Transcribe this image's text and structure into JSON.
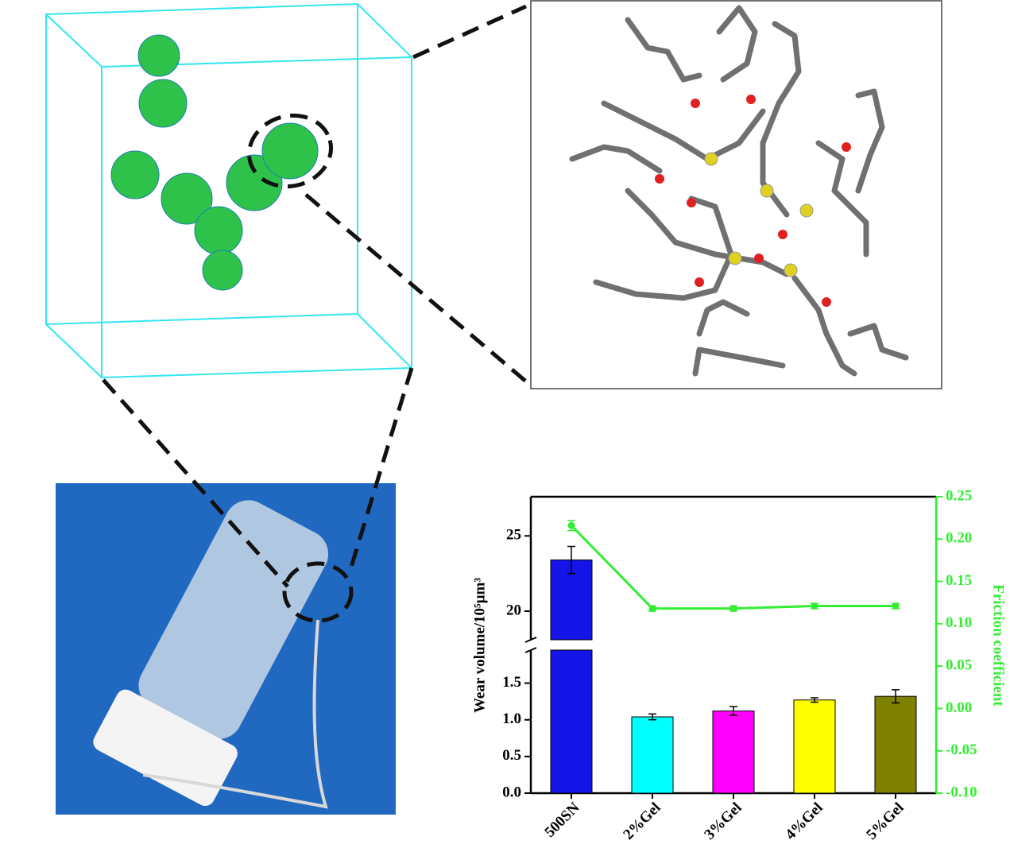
{
  "chart_data": {
    "type": "bar",
    "categories": [
      "500SN",
      "2%Gel",
      "3%Gel",
      "4%Gel",
      "5%Gel"
    ],
    "values": [
      23.4,
      1.04,
      1.12,
      1.27,
      1.32
    ],
    "errors": [
      0.9,
      0.04,
      0.06,
      0.03,
      0.09
    ],
    "colors": [
      "#1414e8",
      "#00ffff",
      "#ff00ff",
      "#ffff00",
      "#808000"
    ],
    "y_label": "Wear volume/10⁵μm³",
    "ylim": [
      0,
      27.6
    ],
    "y_break": [
      1.95,
      18.1
    ],
    "yticks": [
      {
        "value": 0,
        "label": "0.0"
      },
      0.5,
      {
        "value": 1,
        "label": "1.0"
      },
      1.5,
      20,
      25
    ],
    "line": {
      "type": "line",
      "axis": "y2",
      "values": [
        0.216,
        0.118,
        0.118,
        0.121,
        0.121
      ],
      "errors": [
        0.006,
        0.003,
        0.003,
        0.003,
        0.003
      ],
      "color": "#33ee33"
    },
    "y2_label": "Friction coefficient",
    "y2lim": [
      -0.1,
      0.25
    ],
    "y2ticks": [
      {
        "value": -0.1,
        "label": "-0.10"
      },
      -0.05,
      {
        "value": 0,
        "label": "0.00"
      },
      0.05,
      {
        "value": 0.1,
        "label": "0.10"
      },
      0.15,
      {
        "value": 0.2,
        "label": "0.20"
      },
      0.25
    ],
    "y2_color": "#33ee33"
  }
}
